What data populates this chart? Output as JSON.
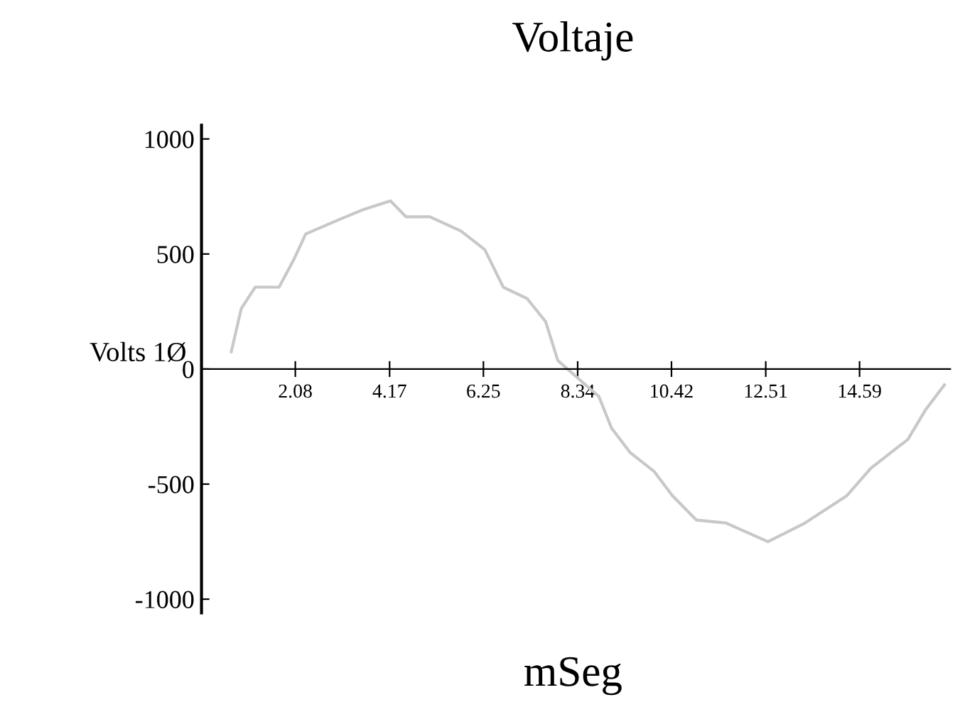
{
  "chart_data": {
    "type": "line",
    "title": "Voltaje",
    "xlabel": "mSeg",
    "ylabel": "Volts 1Ø",
    "x": [
      0.66,
      0.88,
      1.19,
      1.72,
      2.06,
      2.31,
      3.06,
      3.6,
      4.19,
      4.53,
      5.06,
      5.75,
      6.28,
      6.69,
      7.22,
      7.63,
      7.9,
      8.81,
      9.09,
      9.5,
      10.03,
      10.44,
      10.97,
      11.63,
      12.56,
      13.38,
      14.31,
      14.84,
      15.66,
      16.06,
      16.47
    ],
    "series": [
      {
        "color": "#c8c8c8",
        "values": [
          75,
          262,
          356,
          356,
          481,
          587,
          650,
          694,
          731,
          662,
          662,
          600,
          519,
          356,
          306,
          206,
          37,
          -119,
          -256,
          -362,
          -444,
          -550,
          -656,
          -669,
          -750,
          -669,
          -550,
          -431,
          -306,
          -175,
          -69
        ]
      }
    ],
    "xlim": [
      0,
      16.6
    ],
    "ylim": [
      -1060,
      1060
    ],
    "xticks": [
      2.08,
      4.17,
      6.25,
      8.34,
      10.42,
      12.51,
      14.59
    ],
    "yticks": [
      -1000,
      -500,
      0,
      500,
      1000
    ],
    "grid": false,
    "legend": false,
    "marker": "none",
    "line_style": "solid"
  }
}
